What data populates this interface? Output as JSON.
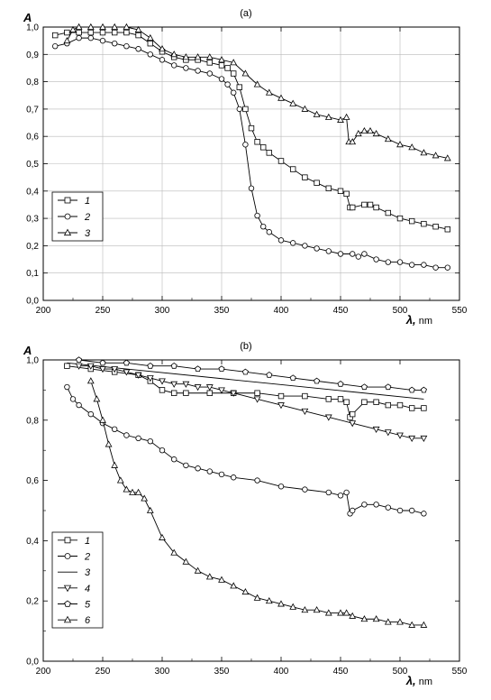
{
  "chart_data": [
    {
      "type": "line",
      "title": "(a)",
      "xlabel": "λ, nm",
      "ylabel": "A",
      "xlim": [
        200,
        550
      ],
      "ylim": [
        0,
        1.0
      ],
      "xticks": [
        "200",
        "250",
        "300",
        "350",
        "400",
        "450",
        "500",
        "550"
      ],
      "yticks": [
        "0,0",
        "0,1",
        "0,2",
        "0,3",
        "0,4",
        "0,5",
        "0,6",
        "0,7",
        "0,8",
        "0,9",
        "1,0"
      ],
      "grid": true,
      "legend_position": "left",
      "series": [
        {
          "name": "1",
          "marker": "square",
          "x": [
            210,
            220,
            230,
            240,
            250,
            260,
            270,
            280,
            290,
            300,
            310,
            320,
            330,
            340,
            350,
            355,
            360,
            365,
            370,
            375,
            380,
            385,
            390,
            400,
            410,
            420,
            430,
            440,
            450,
            455,
            458,
            460,
            470,
            475,
            480,
            490,
            500,
            510,
            520,
            530,
            540
          ],
          "y": [
            0.97,
            0.98,
            0.98,
            0.98,
            0.98,
            0.98,
            0.98,
            0.97,
            0.94,
            0.91,
            0.89,
            0.88,
            0.88,
            0.87,
            0.86,
            0.85,
            0.83,
            0.78,
            0.7,
            0.63,
            0.58,
            0.56,
            0.54,
            0.51,
            0.48,
            0.45,
            0.43,
            0.41,
            0.4,
            0.39,
            0.34,
            0.34,
            0.35,
            0.35,
            0.34,
            0.32,
            0.3,
            0.29,
            0.28,
            0.27,
            0.26
          ]
        },
        {
          "name": "2",
          "marker": "circle",
          "x": [
            210,
            220,
            230,
            240,
            250,
            260,
            270,
            280,
            290,
            300,
            310,
            320,
            330,
            340,
            350,
            355,
            360,
            365,
            370,
            375,
            380,
            385,
            390,
            400,
            410,
            420,
            430,
            440,
            450,
            460,
            465,
            470,
            480,
            490,
            500,
            510,
            520,
            530,
            540
          ],
          "y": [
            0.93,
            0.94,
            0.96,
            0.96,
            0.95,
            0.94,
            0.93,
            0.92,
            0.9,
            0.88,
            0.86,
            0.85,
            0.84,
            0.83,
            0.81,
            0.79,
            0.76,
            0.7,
            0.57,
            0.41,
            0.31,
            0.27,
            0.25,
            0.22,
            0.21,
            0.2,
            0.19,
            0.18,
            0.17,
            0.17,
            0.16,
            0.17,
            0.15,
            0.14,
            0.14,
            0.13,
            0.13,
            0.12,
            0.12
          ]
        },
        {
          "name": "3",
          "marker": "triangle-up",
          "x": [
            220,
            225,
            230,
            240,
            250,
            260,
            270,
            280,
            290,
            300,
            310,
            320,
            330,
            340,
            350,
            360,
            370,
            380,
            390,
            400,
            410,
            420,
            430,
            440,
            450,
            455,
            457,
            460,
            465,
            470,
            475,
            480,
            490,
            500,
            510,
            520,
            530,
            540
          ],
          "y": [
            0.95,
            0.99,
            1.0,
            1.0,
            1.0,
            1.0,
            1.0,
            0.99,
            0.96,
            0.92,
            0.9,
            0.89,
            0.89,
            0.89,
            0.88,
            0.87,
            0.83,
            0.79,
            0.76,
            0.74,
            0.72,
            0.7,
            0.68,
            0.67,
            0.66,
            0.67,
            0.58,
            0.58,
            0.61,
            0.62,
            0.62,
            0.61,
            0.59,
            0.57,
            0.56,
            0.54,
            0.53,
            0.52
          ]
        }
      ]
    },
    {
      "type": "line",
      "title": "(b)",
      "xlabel": "λ, nm",
      "ylabel": "A",
      "xlim": [
        200,
        550
      ],
      "ylim": [
        0,
        1.0
      ],
      "xticks": [
        "200",
        "250",
        "300",
        "350",
        "400",
        "450",
        "500",
        "550"
      ],
      "yticks": [
        "0,0",
        "0,2",
        "0,4",
        "0,6",
        "0,8",
        "1,0"
      ],
      "grid": false,
      "legend_position": "bottom-left",
      "series": [
        {
          "name": "1",
          "marker": "square",
          "x": [
            220,
            240,
            260,
            280,
            290,
            300,
            310,
            320,
            340,
            360,
            380,
            400,
            420,
            440,
            450,
            455,
            458,
            460,
            470,
            480,
            490,
            500,
            510,
            520
          ],
          "y": [
            0.98,
            0.97,
            0.96,
            0.95,
            0.93,
            0.9,
            0.89,
            0.89,
            0.89,
            0.89,
            0.89,
            0.88,
            0.88,
            0.87,
            0.87,
            0.86,
            0.81,
            0.82,
            0.86,
            0.86,
            0.85,
            0.85,
            0.84,
            0.84
          ]
        },
        {
          "name": "2",
          "marker": "circle",
          "x": [
            220,
            225,
            230,
            240,
            250,
            260,
            270,
            280,
            290,
            300,
            310,
            320,
            330,
            340,
            350,
            360,
            380,
            400,
            420,
            440,
            450,
            455,
            458,
            460,
            470,
            480,
            490,
            500,
            510,
            520
          ],
          "y": [
            0.91,
            0.87,
            0.85,
            0.82,
            0.79,
            0.77,
            0.75,
            0.74,
            0.73,
            0.7,
            0.67,
            0.65,
            0.64,
            0.63,
            0.62,
            0.61,
            0.6,
            0.58,
            0.57,
            0.56,
            0.55,
            0.56,
            0.49,
            0.5,
            0.52,
            0.52,
            0.51,
            0.5,
            0.5,
            0.49
          ]
        },
        {
          "name": "3",
          "marker": "none",
          "x": [
            220,
            520
          ],
          "y": [
            0.99,
            0.87
          ]
        },
        {
          "name": "4",
          "marker": "triangle-down",
          "x": [
            230,
            240,
            250,
            260,
            270,
            280,
            290,
            300,
            310,
            320,
            330,
            340,
            350,
            360,
            380,
            400,
            420,
            440,
            460,
            480,
            490,
            500,
            510,
            520
          ],
          "y": [
            0.98,
            0.98,
            0.97,
            0.97,
            0.96,
            0.95,
            0.94,
            0.93,
            0.92,
            0.92,
            0.91,
            0.91,
            0.9,
            0.89,
            0.87,
            0.85,
            0.83,
            0.81,
            0.79,
            0.77,
            0.76,
            0.75,
            0.74,
            0.74
          ]
        },
        {
          "name": "5",
          "marker": "pentagon",
          "x": [
            230,
            250,
            270,
            290,
            310,
            330,
            350,
            370,
            390,
            410,
            430,
            450,
            470,
            490,
            510,
            520
          ],
          "y": [
            1.0,
            0.99,
            0.99,
            0.98,
            0.98,
            0.97,
            0.97,
            0.96,
            0.95,
            0.94,
            0.93,
            0.92,
            0.91,
            0.91,
            0.9,
            0.9
          ]
        },
        {
          "name": "6",
          "marker": "triangle-up",
          "x": [
            240,
            245,
            250,
            255,
            260,
            265,
            270,
            275,
            280,
            285,
            290,
            300,
            310,
            320,
            330,
            340,
            350,
            360,
            370,
            380,
            390,
            400,
            410,
            420,
            430,
            440,
            450,
            455,
            460,
            470,
            480,
            490,
            500,
            510,
            520
          ],
          "y": [
            0.93,
            0.87,
            0.8,
            0.72,
            0.65,
            0.6,
            0.57,
            0.56,
            0.56,
            0.54,
            0.5,
            0.41,
            0.36,
            0.33,
            0.3,
            0.28,
            0.27,
            0.25,
            0.23,
            0.21,
            0.2,
            0.19,
            0.18,
            0.17,
            0.17,
            0.16,
            0.16,
            0.16,
            0.15,
            0.14,
            0.14,
            0.13,
            0.13,
            0.12,
            0.12
          ]
        }
      ]
    }
  ]
}
